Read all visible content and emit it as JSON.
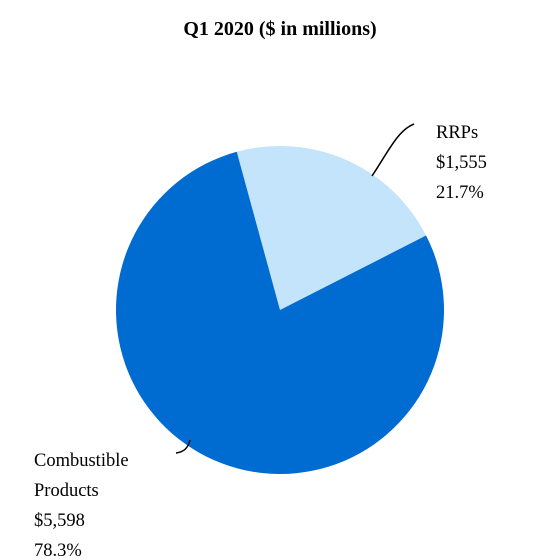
{
  "chart_data": {
    "type": "pie",
    "title": "Q1 2020 ($ in millions)",
    "slices": [
      {
        "label": "RRPs",
        "value": 1555,
        "value_text": "$1,555",
        "percent": 21.7,
        "percent_text": "21.7%",
        "color": "#c4e4fb"
      },
      {
        "label": "Combustible Products",
        "label_lines": [
          "Combustible",
          "Products"
        ],
        "value": 5598,
        "value_text": "$5,598",
        "percent": 78.3,
        "percent_text": "78.3%",
        "color": "#006bd0"
      }
    ],
    "legend": "none"
  }
}
